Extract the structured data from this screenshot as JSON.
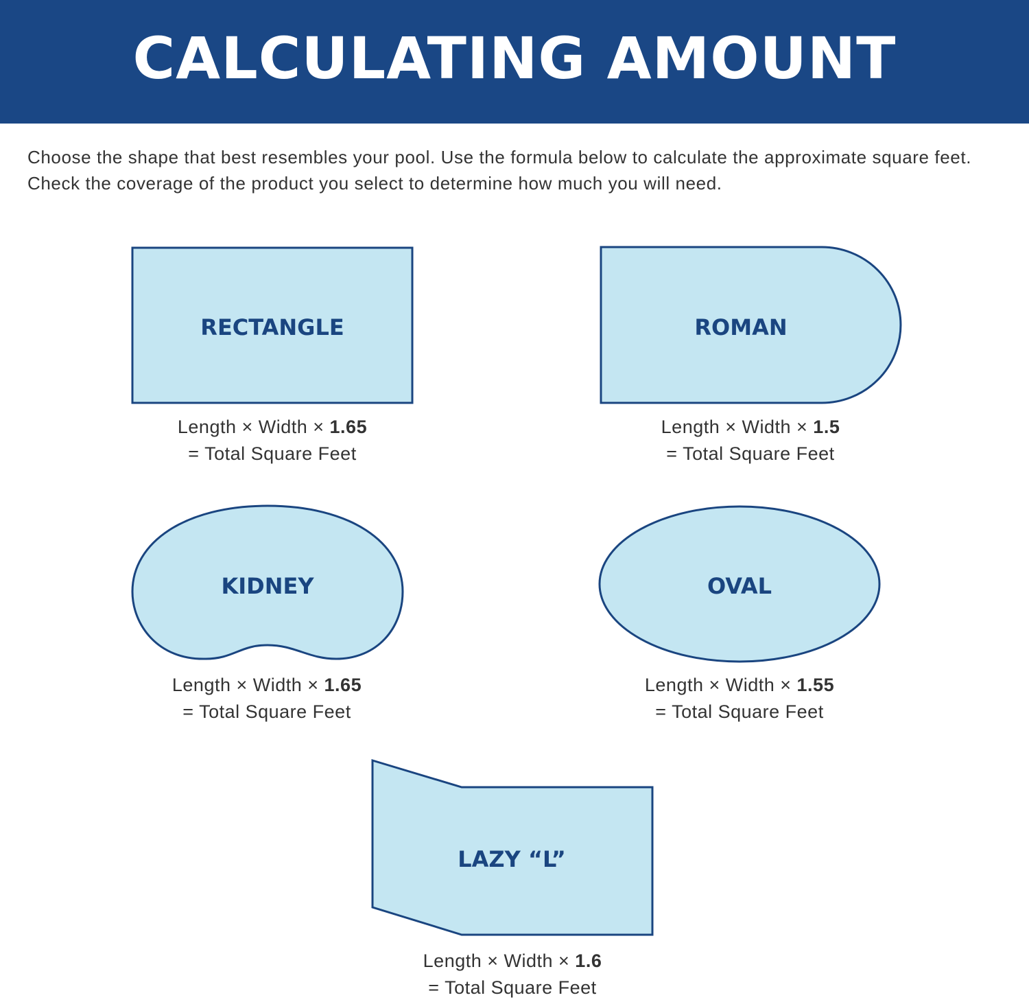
{
  "header": {
    "title": "CALCULATING AMOUNT",
    "background_color": "#1a4785"
  },
  "intro": {
    "text": "Choose the shape that best resembles your pool. Use the formula below to calculate the approximate square feet. Check the coverage of the product you select to determine how much you will need."
  },
  "colors": {
    "shape_fill": "#c4e6f2",
    "shape_stroke": "#1a4580"
  },
  "shapes": [
    {
      "name": "RECTANGLE",
      "formula_prefix": "Length × Width × ",
      "factor": "1.65",
      "result": "= Total Square Feet"
    },
    {
      "name": "ROMAN",
      "formula_prefix": "Length × Width × ",
      "factor": "1.5",
      "result": "= Total Square Feet"
    },
    {
      "name": "KIDNEY",
      "formula_prefix": "Length × Width × ",
      "factor": "1.65",
      "result": "= Total Square Feet"
    },
    {
      "name": "OVAL",
      "formula_prefix": "Length × Width × ",
      "factor": "1.55",
      "result": "= Total Square Feet"
    },
    {
      "name": "LAZY “L”",
      "formula_prefix": "Length × Width × ",
      "factor": "1.6",
      "result": "= Total Square Feet"
    }
  ]
}
